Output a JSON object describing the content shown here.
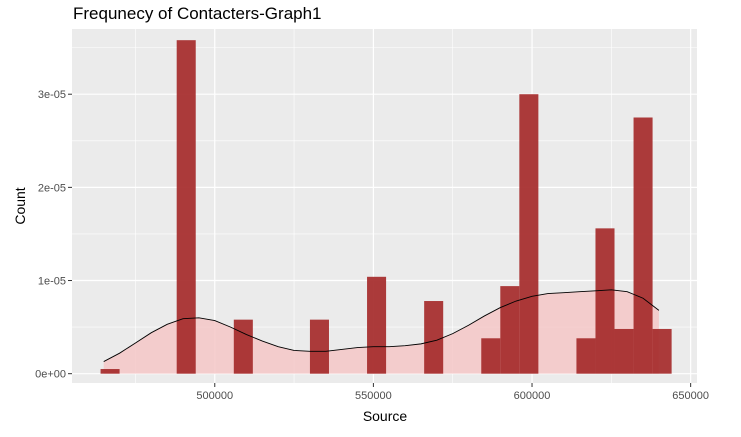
{
  "chart_data": {
    "type": "bar",
    "title": "Frequnecy of Contacters-Graph1",
    "xlabel": "Source",
    "ylabel": "Count",
    "xlim": [
      455000,
      652000
    ],
    "ylim": [
      -1e-06,
      3.7e-05
    ],
    "x_ticks": [
      500000,
      550000,
      600000,
      650000
    ],
    "x_tick_labels": [
      "500000",
      "550000",
      "600000",
      "650000"
    ],
    "y_ticks": [
      0,
      1e-05,
      2e-05,
      3e-05
    ],
    "y_tick_labels": [
      "0e+00",
      "1e-05",
      "2e-05",
      "3e-05"
    ],
    "bin_width": 6000,
    "bins": [
      {
        "x0": 464000,
        "x1": 470000,
        "count": 5e-07
      },
      {
        "x0": 488000,
        "x1": 494000,
        "count": 3.58e-05
      },
      {
        "x0": 506000,
        "x1": 512000,
        "count": 5.8e-06
      },
      {
        "x0": 530000,
        "x1": 536000,
        "count": 5.8e-06
      },
      {
        "x0": 548000,
        "x1": 554000,
        "count": 1.04e-05
      },
      {
        "x0": 566000,
        "x1": 572000,
        "count": 7.8e-06
      },
      {
        "x0": 584000,
        "x1": 590000,
        "count": 3.8e-06
      },
      {
        "x0": 590000,
        "x1": 596000,
        "count": 9.4e-06
      },
      {
        "x0": 596000,
        "x1": 602000,
        "count": 3e-05
      },
      {
        "x0": 614000,
        "x1": 620000,
        "count": 3.8e-06
      },
      {
        "x0": 620000,
        "x1": 626000,
        "count": 1.56e-05
      },
      {
        "x0": 626000,
        "x1": 632000,
        "count": 4.8e-06
      },
      {
        "x0": 632000,
        "x1": 638000,
        "count": 2.75e-05
      },
      {
        "x0": 638000,
        "x1": 644000,
        "count": 4.8e-06
      }
    ],
    "density": {
      "x": [
        465000,
        470000,
        475000,
        480000,
        485000,
        490000,
        495000,
        500000,
        505000,
        510000,
        515000,
        520000,
        525000,
        530000,
        535000,
        540000,
        545000,
        550000,
        555000,
        560000,
        565000,
        570000,
        575000,
        580000,
        585000,
        590000,
        595000,
        600000,
        605000,
        610000,
        615000,
        620000,
        625000,
        630000,
        635000,
        640000
      ],
      "y": [
        1.3e-06,
        2.2e-06,
        3.3e-06,
        4.4e-06,
        5.3e-06,
        5.9e-06,
        6e-06,
        5.7e-06,
        5e-06,
        4.2e-06,
        3.5e-06,
        2.9e-06,
        2.5e-06,
        2.4e-06,
        2.4e-06,
        2.6e-06,
        2.8e-06,
        2.9e-06,
        2.9e-06,
        3e-06,
        3.2e-06,
        3.6e-06,
        4.3e-06,
        5.2e-06,
        6.2e-06,
        7.1e-06,
        7.8e-06,
        8.3e-06,
        8.6e-06,
        8.7e-06,
        8.8e-06,
        8.9e-06,
        9e-06,
        8.8e-06,
        8.1e-06,
        6.8e-06
      ]
    },
    "colors": {
      "panel": "#ebebeb",
      "grid": "#ffffff",
      "bar": "#a52a2a",
      "density_fill": "#f4c7c7",
      "density_line": "#000000"
    },
    "grid": true
  }
}
